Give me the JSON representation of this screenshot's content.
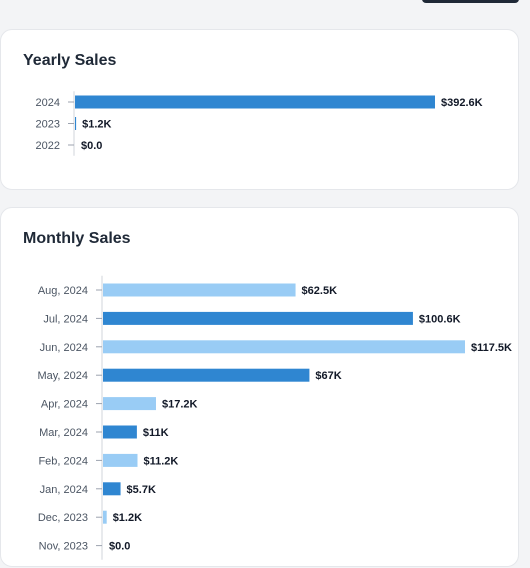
{
  "colors": {
    "dark_bar": "#2f86d1",
    "light_bar": "#99ccf5",
    "text": "#1f2937"
  },
  "yearly": {
    "title": "Yearly Sales"
  },
  "monthly": {
    "title": "Monthly Sales"
  },
  "chart_data": [
    {
      "type": "bar",
      "orientation": "horizontal",
      "title": "Yearly Sales",
      "categories": [
        "2024",
        "2023",
        "2022"
      ],
      "values": [
        392600,
        1200,
        0
      ],
      "value_labels": [
        "$392.6K",
        "$1.2K",
        "$0.0"
      ],
      "bar_colors": [
        "dark",
        "dark",
        "dark"
      ],
      "xlim": [
        0,
        392600
      ]
    },
    {
      "type": "bar",
      "orientation": "horizontal",
      "title": "Monthly Sales",
      "categories": [
        "Aug, 2024",
        "Jul, 2024",
        "Jun, 2024",
        "May, 2024",
        "Apr, 2024",
        "Mar, 2024",
        "Feb, 2024",
        "Jan, 2024",
        "Dec, 2023",
        "Nov, 2023"
      ],
      "values": [
        62500,
        100600,
        117500,
        67000,
        17200,
        11000,
        11200,
        5700,
        1200,
        0
      ],
      "value_labels": [
        "$62.5K",
        "$100.6K",
        "$117.5K",
        "$67K",
        "$17.2K",
        "$11K",
        "$11.2K",
        "$5.7K",
        "$1.2K",
        "$0.0"
      ],
      "bar_colors": [
        "light",
        "dark",
        "light",
        "dark",
        "light",
        "dark",
        "light",
        "dark",
        "light",
        "dark"
      ],
      "xlim": [
        0,
        117500
      ]
    }
  ]
}
